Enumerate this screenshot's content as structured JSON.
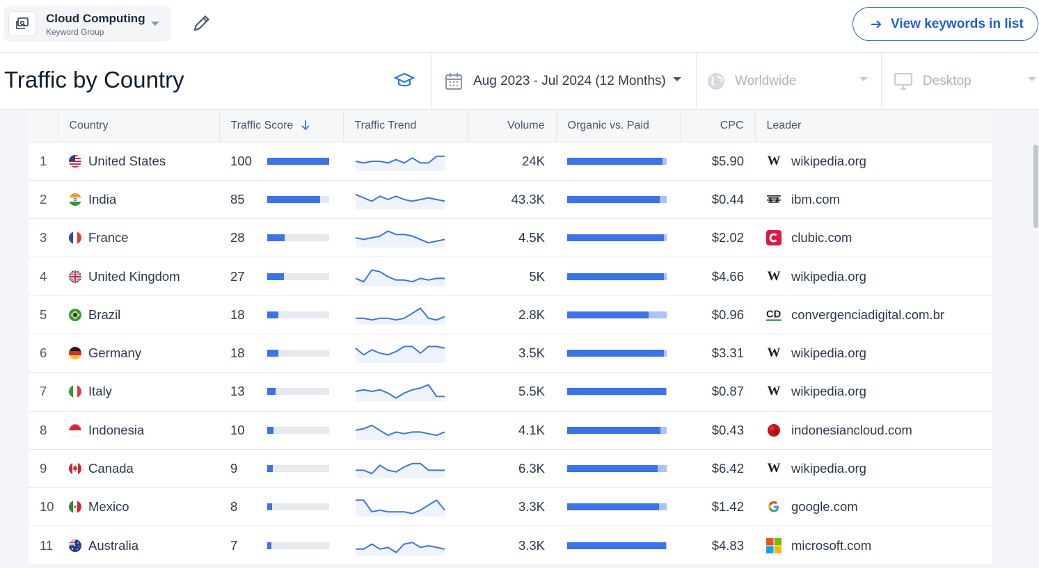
{
  "keyword_group": {
    "title": "Cloud Computing",
    "subtitle": "Keyword Group"
  },
  "actions": {
    "view_keywords_label": "View keywords in list"
  },
  "header": {
    "title": "Traffic by Country",
    "date_range": "Aug 2023 - Jul 2024 (12 Months)",
    "geo": "Worldwide",
    "device": "Desktop"
  },
  "table": {
    "columns": [
      "",
      "Country",
      "Traffic Score",
      "Traffic Trend",
      "Volume",
      "Organic vs. Paid",
      "CPC",
      "Leader"
    ],
    "rows": [
      {
        "rank": "1",
        "country": "United States",
        "flag": "us",
        "score": "100",
        "score_pct": 100,
        "trend": [
          5,
          6,
          5,
          5,
          6,
          4,
          6,
          3,
          6,
          6,
          2,
          2
        ],
        "volume": "24K",
        "organic_pct": 96,
        "cpc": "$5.90",
        "leader": "wikipedia.org",
        "leader_icon": "wikipedia-icon"
      },
      {
        "rank": "2",
        "country": "India",
        "flag": "in",
        "score": "85",
        "score_pct": 85,
        "trend": [
          2,
          4,
          6,
          3,
          5,
          3,
          5,
          6,
          5,
          4,
          5,
          6
        ],
        "volume": "43.3K",
        "organic_pct": 93,
        "cpc": "$0.44",
        "leader": "ibm.com",
        "leader_icon": "ibm-icon"
      },
      {
        "rank": "3",
        "country": "France",
        "flag": "fr",
        "score": "28",
        "score_pct": 28,
        "trend": [
          5,
          6,
          5,
          4,
          1,
          3,
          3,
          4,
          6,
          8,
          7,
          6
        ],
        "volume": "4.5K",
        "organic_pct": 97,
        "cpc": "$2.02",
        "leader": "clubic.com",
        "leader_icon": "clubic-icon"
      },
      {
        "rank": "4",
        "country": "United Kingdom",
        "flag": "gb",
        "score": "27",
        "score_pct": 27,
        "trend": [
          6,
          8,
          1,
          2,
          5,
          7,
          7,
          8,
          6,
          7,
          6,
          6
        ],
        "volume": "5K",
        "organic_pct": 97,
        "cpc": "$4.66",
        "leader": "wikipedia.org",
        "leader_icon": "wikipedia-icon"
      },
      {
        "rank": "5",
        "country": "Brazil",
        "flag": "br",
        "score": "18",
        "score_pct": 18,
        "trend": [
          7,
          7,
          8,
          7,
          7,
          8,
          7,
          4,
          1,
          7,
          8,
          6
        ],
        "volume": "2.8K",
        "organic_pct": 82,
        "cpc": "$0.96",
        "leader": "convergenciadigital.com.br",
        "leader_icon": "cd-icon"
      },
      {
        "rank": "6",
        "country": "Germany",
        "flag": "de",
        "score": "18",
        "score_pct": 18,
        "trend": [
          2,
          6,
          3,
          5,
          6,
          4,
          1,
          1,
          5,
          1,
          1,
          2
        ],
        "volume": "3.5K",
        "organic_pct": 97,
        "cpc": "$3.31",
        "leader": "wikipedia.org",
        "leader_icon": "wikipedia-icon"
      },
      {
        "rank": "7",
        "country": "Italy",
        "flag": "it",
        "score": "13",
        "score_pct": 13,
        "trend": [
          5,
          4,
          5,
          4,
          6,
          9,
          6,
          4,
          3,
          1,
          8,
          8
        ],
        "volume": "5.5K",
        "organic_pct": 99,
        "cpc": "$0.87",
        "leader": "wikipedia.org",
        "leader_icon": "wikipedia-icon"
      },
      {
        "rank": "8",
        "country": "Indonesia",
        "flag": "id",
        "score": "10",
        "score_pct": 10,
        "trend": [
          5,
          4,
          2,
          5,
          8,
          6,
          7,
          6,
          6,
          7,
          8,
          6
        ],
        "volume": "4.1K",
        "organic_pct": 94,
        "cpc": "$0.43",
        "leader": "indonesiancloud.com",
        "leader_icon": "indonesiancloud-icon"
      },
      {
        "rank": "9",
        "country": "Canada",
        "flag": "ca",
        "score": "9",
        "score_pct": 9,
        "trend": [
          6,
          6,
          8,
          3,
          6,
          7,
          4,
          2,
          2,
          6,
          6,
          6
        ],
        "volume": "6.3K",
        "organic_pct": 91,
        "cpc": "$6.42",
        "leader": "wikipedia.org",
        "leader_icon": "wikipedia-icon"
      },
      {
        "rank": "10",
        "country": "Mexico",
        "flag": "mx",
        "score": "8",
        "score_pct": 8,
        "trend": [
          1,
          1,
          8,
          7,
          8,
          8,
          8,
          9,
          7,
          4,
          1,
          7
        ],
        "volume": "3.3K",
        "organic_pct": 92,
        "cpc": "$1.42",
        "leader": "google.com",
        "leader_icon": "google-icon"
      },
      {
        "rank": "11",
        "country": "Australia",
        "flag": "au",
        "score": "7",
        "score_pct": 7,
        "trend": [
          7,
          7,
          4,
          7,
          6,
          9,
          4,
          3,
          6,
          5,
          6,
          7
        ],
        "volume": "3.3K",
        "organic_pct": 99,
        "cpc": "$4.83",
        "leader": "microsoft.com",
        "leader_icon": "microsoft-icon"
      }
    ]
  },
  "colors": {
    "accent": "#1f5fd6",
    "bar_fill": "#3a72f0",
    "bar_bg": "#e6e9ee",
    "paid": "#a9c4fa",
    "trend_line": "#3a72f0"
  }
}
